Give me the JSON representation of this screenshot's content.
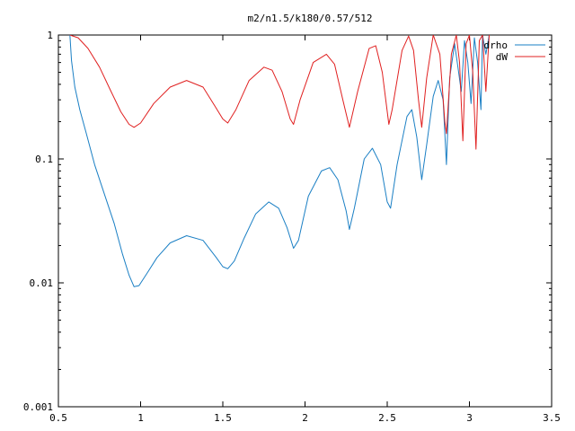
{
  "chart_data": {
    "type": "line",
    "title": "m2/n1.5/k180/0.57/512",
    "xlabel": "",
    "ylabel": "",
    "xlim": [
      0.5,
      3.5
    ],
    "ylim": [
      0.001,
      1
    ],
    "yscale": "log",
    "grid": false,
    "legend_position": "top-right",
    "x_ticks": [
      "0.5",
      "1",
      "1.5",
      "2",
      "2.5",
      "3",
      "3.5"
    ],
    "y_ticks": [
      "0.001",
      "0.01",
      "0.1",
      "1"
    ],
    "series": [
      {
        "name": "drho",
        "color": "#1a7fc4",
        "points": [
          [
            0.57,
            1.0
          ],
          [
            0.58,
            0.62
          ],
          [
            0.6,
            0.38
          ],
          [
            0.63,
            0.25
          ],
          [
            0.67,
            0.16
          ],
          [
            0.72,
            0.09
          ],
          [
            0.78,
            0.052
          ],
          [
            0.84,
            0.03
          ],
          [
            0.89,
            0.017
          ],
          [
            0.93,
            0.0115
          ],
          [
            0.96,
            0.0093
          ],
          [
            0.99,
            0.0095
          ],
          [
            1.04,
            0.012
          ],
          [
            1.1,
            0.016
          ],
          [
            1.18,
            0.021
          ],
          [
            1.28,
            0.024
          ],
          [
            1.38,
            0.022
          ],
          [
            1.46,
            0.016
          ],
          [
            1.5,
            0.0135
          ],
          [
            1.53,
            0.013
          ],
          [
            1.57,
            0.015
          ],
          [
            1.63,
            0.023
          ],
          [
            1.7,
            0.036
          ],
          [
            1.78,
            0.045
          ],
          [
            1.84,
            0.04
          ],
          [
            1.89,
            0.028
          ],
          [
            1.93,
            0.019
          ],
          [
            1.96,
            0.022
          ],
          [
            2.02,
            0.05
          ],
          [
            2.1,
            0.08
          ],
          [
            2.15,
            0.085
          ],
          [
            2.2,
            0.068
          ],
          [
            2.25,
            0.038
          ],
          [
            2.27,
            0.027
          ],
          [
            2.3,
            0.04
          ],
          [
            2.36,
            0.1
          ],
          [
            2.41,
            0.122
          ],
          [
            2.46,
            0.09
          ],
          [
            2.5,
            0.045
          ],
          [
            2.52,
            0.04
          ],
          [
            2.56,
            0.09
          ],
          [
            2.62,
            0.22
          ],
          [
            2.65,
            0.25
          ],
          [
            2.68,
            0.15
          ],
          [
            2.71,
            0.068
          ],
          [
            2.74,
            0.13
          ],
          [
            2.78,
            0.32
          ],
          [
            2.81,
            0.43
          ],
          [
            2.84,
            0.3
          ],
          [
            2.86,
            0.09
          ],
          [
            2.88,
            0.45
          ],
          [
            2.91,
            0.85
          ],
          [
            2.93,
            0.55
          ],
          [
            2.95,
            0.35
          ],
          [
            2.97,
            0.9
          ],
          [
            2.99,
            0.6
          ],
          [
            3.01,
            0.28
          ],
          [
            3.03,
            0.95
          ],
          [
            3.05,
            0.6
          ],
          [
            3.07,
            0.25
          ],
          [
            3.08,
            1.0
          ],
          [
            3.1,
            0.7
          ],
          [
            3.12,
            1.0
          ]
        ]
      },
      {
        "name": "dW",
        "color": "#e02020",
        "points": [
          [
            0.57,
            1.0
          ],
          [
            0.62,
            0.95
          ],
          [
            0.68,
            0.78
          ],
          [
            0.75,
            0.55
          ],
          [
            0.82,
            0.35
          ],
          [
            0.88,
            0.24
          ],
          [
            0.93,
            0.19
          ],
          [
            0.96,
            0.18
          ],
          [
            1.0,
            0.195
          ],
          [
            1.08,
            0.28
          ],
          [
            1.18,
            0.38
          ],
          [
            1.28,
            0.43
          ],
          [
            1.38,
            0.38
          ],
          [
            1.45,
            0.27
          ],
          [
            1.5,
            0.21
          ],
          [
            1.53,
            0.195
          ],
          [
            1.58,
            0.25
          ],
          [
            1.66,
            0.43
          ],
          [
            1.75,
            0.55
          ],
          [
            1.8,
            0.52
          ],
          [
            1.86,
            0.35
          ],
          [
            1.91,
            0.21
          ],
          [
            1.93,
            0.19
          ],
          [
            1.97,
            0.3
          ],
          [
            2.05,
            0.6
          ],
          [
            2.13,
            0.7
          ],
          [
            2.18,
            0.58
          ],
          [
            2.23,
            0.3
          ],
          [
            2.27,
            0.18
          ],
          [
            2.32,
            0.35
          ],
          [
            2.39,
            0.78
          ],
          [
            2.43,
            0.82
          ],
          [
            2.47,
            0.5
          ],
          [
            2.51,
            0.19
          ],
          [
            2.53,
            0.25
          ],
          [
            2.59,
            0.75
          ],
          [
            2.63,
            0.98
          ],
          [
            2.66,
            0.75
          ],
          [
            2.69,
            0.3
          ],
          [
            2.71,
            0.18
          ],
          [
            2.74,
            0.45
          ],
          [
            2.78,
            1.0
          ],
          [
            2.82,
            0.7
          ],
          [
            2.85,
            0.2
          ],
          [
            2.86,
            0.16
          ],
          [
            2.89,
            0.7
          ],
          [
            2.92,
            1.0
          ],
          [
            2.94,
            0.6
          ],
          [
            2.96,
            0.14
          ],
          [
            2.98,
            0.85
          ],
          [
            3.0,
            1.0
          ],
          [
            3.02,
            0.5
          ],
          [
            3.04,
            0.12
          ],
          [
            3.06,
            0.9
          ],
          [
            3.08,
            1.0
          ],
          [
            3.1,
            0.35
          ],
          [
            3.12,
            1.0
          ]
        ]
      }
    ]
  }
}
